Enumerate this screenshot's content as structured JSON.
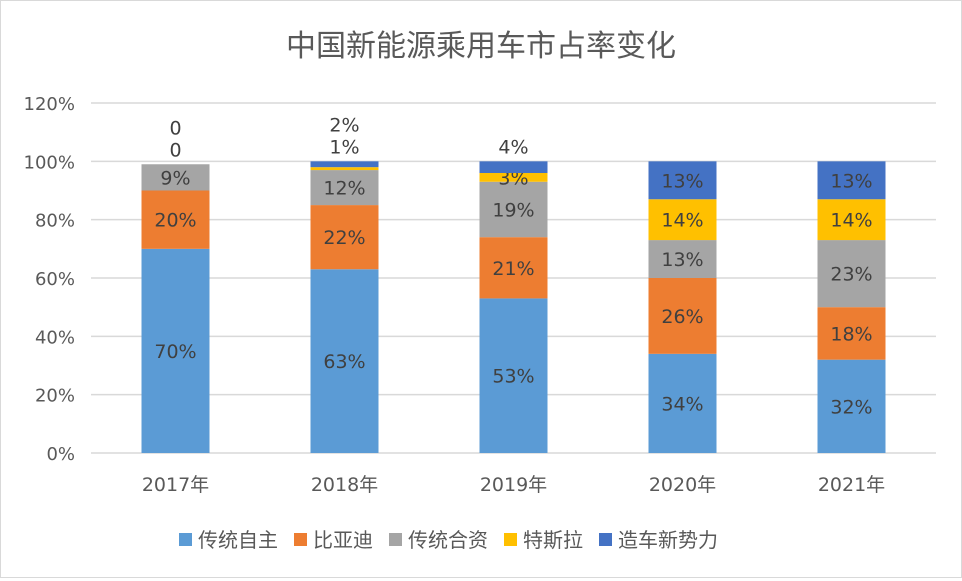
{
  "chart_data": {
    "type": "bar",
    "stacked": true,
    "title": "中国新能源乘用车市占率变化",
    "categories": [
      "2017年",
      "2018年",
      "2019年",
      "2020年",
      "2021年"
    ],
    "ylim": [
      0,
      120
    ],
    "yticks": [
      "0%",
      "20%",
      "40%",
      "60%",
      "80%",
      "100%",
      "120%"
    ],
    "grid": true,
    "legend_position": "bottom",
    "series": [
      {
        "name": "传统自主",
        "color": "#5B9BD5",
        "values": [
          70,
          63,
          53,
          34,
          32
        ],
        "labels": [
          "70%",
          "63%",
          "53%",
          "34%",
          "32%"
        ]
      },
      {
        "name": "比亚迪",
        "color": "#ED7D31",
        "values": [
          20,
          22,
          21,
          26,
          18
        ],
        "labels": [
          "20%",
          "22%",
          "21%",
          "26%",
          "18%"
        ]
      },
      {
        "name": "传统合资",
        "color": "#A5A5A5",
        "values": [
          9,
          12,
          19,
          13,
          23
        ],
        "labels": [
          "9%",
          "12%",
          "19%",
          "13%",
          "23%"
        ]
      },
      {
        "name": "特斯拉",
        "color": "#FFC000",
        "values": [
          0,
          1,
          3,
          14,
          14
        ],
        "labels": [
          "0",
          "1%",
          "3%",
          "14%",
          "14%"
        ]
      },
      {
        "name": "造车新势力",
        "color": "#4472C4",
        "values": [
          0,
          2,
          4,
          13,
          13
        ],
        "labels": [
          "0",
          "2%",
          "4%",
          "13%",
          "13%"
        ]
      }
    ]
  }
}
